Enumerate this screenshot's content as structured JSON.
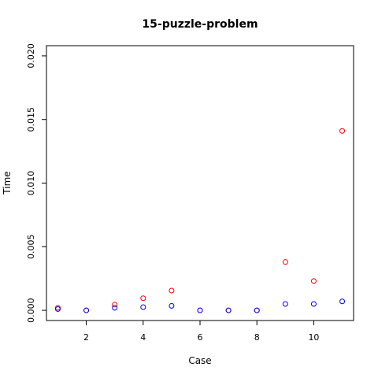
{
  "chart_data": {
    "type": "scatter",
    "title": "15-puzzle-problem",
    "xlabel": "Case",
    "ylabel": "Time",
    "xlim": [
      0.6,
      11.4
    ],
    "ylim": [
      -0.0008,
      0.0208
    ],
    "x_ticks": [
      2,
      4,
      6,
      8,
      10
    ],
    "x_tick_labels": [
      "2",
      "4",
      "6",
      "8",
      "10"
    ],
    "y_ticks": [
      0,
      0.005,
      0.01,
      0.015,
      0.02
    ],
    "y_tick_labels": [
      "0.000",
      "0.005",
      "0.010",
      "0.015",
      "0.020"
    ],
    "grid": false,
    "series": [
      {
        "color": "#ff0000",
        "x": [
          1,
          2,
          3,
          4,
          5,
          6,
          7,
          8,
          9,
          10,
          11
        ],
        "y": [
          0.0002,
          0.0,
          0.00045,
          0.00095,
          0.00155,
          0.0,
          0.0,
          0.0,
          0.0038,
          0.0023,
          0.0141
        ]
      },
      {
        "color": "#0000ff",
        "x": [
          1,
          2,
          3,
          4,
          5,
          6,
          7,
          8,
          9,
          10,
          11
        ],
        "y": [
          0.0001,
          0.0,
          0.0002,
          0.00025,
          0.00035,
          0.0,
          0.0,
          0.0,
          0.0005,
          0.0005,
          0.0007
        ]
      }
    ]
  }
}
